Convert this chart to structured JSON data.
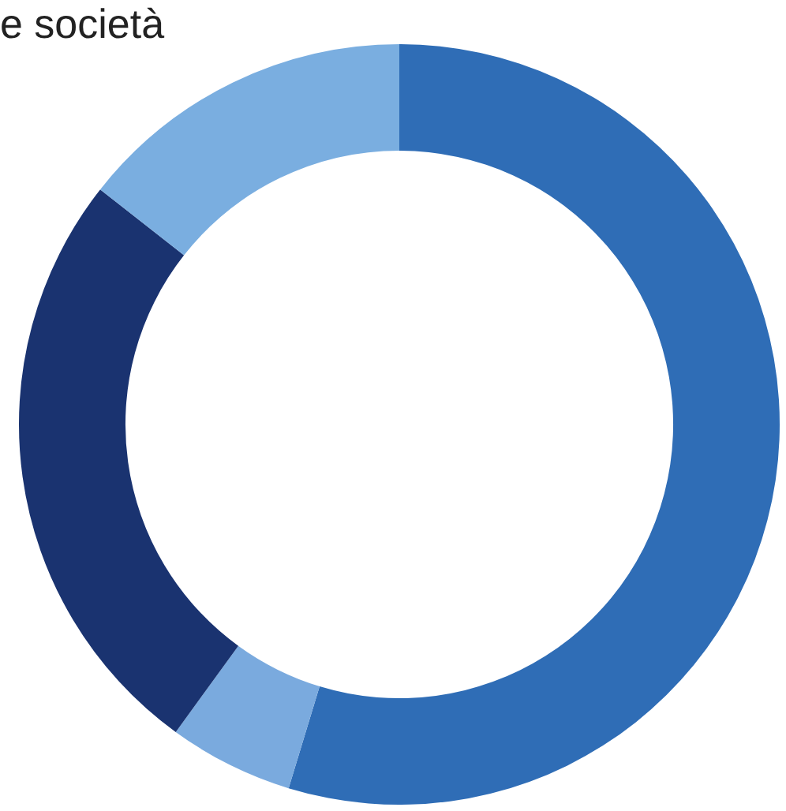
{
  "chart_data": {
    "type": "donut",
    "title": "e società",
    "categories": [
      null,
      null,
      null,
      null
    ],
    "values": [
      54.7,
      5.3,
      25.6,
      14.4
    ],
    "colors": [
      "#2f6db6",
      "#7aaade",
      "#1a3370",
      "#7aaee0"
    ],
    "legend": false
  }
}
